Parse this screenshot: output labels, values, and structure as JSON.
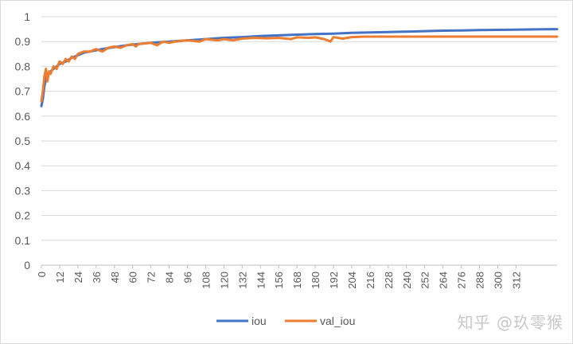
{
  "chart_data": {
    "type": "line",
    "title": "",
    "xlabel": "",
    "ylabel": "",
    "ylim": [
      0,
      1
    ],
    "yticks": [
      "0",
      "0.1",
      "0.2",
      "0.3",
      "0.4",
      "0.5",
      "0.6",
      "0.7",
      "0.8",
      "0.9",
      "1"
    ],
    "xlim": [
      0,
      339
    ],
    "xticks": [
      "0",
      "12",
      "24",
      "36",
      "48",
      "60",
      "72",
      "84",
      "96",
      "108",
      "120",
      "132",
      "144",
      "156",
      "168",
      "180",
      "192",
      "204",
      "216",
      "228",
      "240",
      "252",
      "264",
      "276",
      "288",
      "300",
      "312"
    ],
    "legend_position": "bottom",
    "grid": "horizontal",
    "series": [
      {
        "name": "iou",
        "color": "#4472c4",
        "points": [
          [
            0,
            0.64
          ],
          [
            1,
            0.67
          ],
          [
            2,
            0.72
          ],
          [
            3,
            0.75
          ],
          [
            4,
            0.77
          ],
          [
            6,
            0.78
          ],
          [
            8,
            0.79
          ],
          [
            10,
            0.8
          ],
          [
            12,
            0.81
          ],
          [
            16,
            0.82
          ],
          [
            20,
            0.835
          ],
          [
            24,
            0.845
          ],
          [
            28,
            0.855
          ],
          [
            32,
            0.86
          ],
          [
            36,
            0.865
          ],
          [
            40,
            0.87
          ],
          [
            48,
            0.878
          ],
          [
            56,
            0.885
          ],
          [
            64,
            0.89
          ],
          [
            72,
            0.895
          ],
          [
            84,
            0.9
          ],
          [
            96,
            0.905
          ],
          [
            108,
            0.91
          ],
          [
            120,
            0.915
          ],
          [
            132,
            0.918
          ],
          [
            144,
            0.922
          ],
          [
            156,
            0.925
          ],
          [
            168,
            0.928
          ],
          [
            180,
            0.93
          ],
          [
            192,
            0.932
          ],
          [
            204,
            0.935
          ],
          [
            216,
            0.937
          ],
          [
            228,
            0.938
          ],
          [
            240,
            0.94
          ],
          [
            252,
            0.942
          ],
          [
            264,
            0.944
          ],
          [
            276,
            0.945
          ],
          [
            288,
            0.946
          ],
          [
            300,
            0.947
          ],
          [
            312,
            0.948
          ],
          [
            324,
            0.949
          ],
          [
            339,
            0.95
          ]
        ]
      },
      {
        "name": "val_iou",
        "color": "#ed7d31",
        "points": [
          [
            0,
            0.66
          ],
          [
            1,
            0.7
          ],
          [
            2,
            0.76
          ],
          [
            3,
            0.79
          ],
          [
            4,
            0.74
          ],
          [
            5,
            0.78
          ],
          [
            6,
            0.77
          ],
          [
            8,
            0.8
          ],
          [
            10,
            0.79
          ],
          [
            12,
            0.82
          ],
          [
            14,
            0.81
          ],
          [
            16,
            0.83
          ],
          [
            18,
            0.82
          ],
          [
            20,
            0.84
          ],
          [
            22,
            0.83
          ],
          [
            24,
            0.85
          ],
          [
            28,
            0.86
          ],
          [
            32,
            0.86
          ],
          [
            36,
            0.87
          ],
          [
            40,
            0.86
          ],
          [
            44,
            0.875
          ],
          [
            48,
            0.88
          ],
          [
            52,
            0.875
          ],
          [
            56,
            0.885
          ],
          [
            60,
            0.89
          ],
          [
            62,
            0.88
          ],
          [
            64,
            0.89
          ],
          [
            72,
            0.895
          ],
          [
            76,
            0.885
          ],
          [
            80,
            0.9
          ],
          [
            84,
            0.895
          ],
          [
            88,
            0.9
          ],
          [
            96,
            0.905
          ],
          [
            104,
            0.9
          ],
          [
            108,
            0.91
          ],
          [
            116,
            0.905
          ],
          [
            120,
            0.91
          ],
          [
            126,
            0.905
          ],
          [
            132,
            0.912
          ],
          [
            140,
            0.915
          ],
          [
            148,
            0.913
          ],
          [
            156,
            0.915
          ],
          [
            164,
            0.91
          ],
          [
            168,
            0.917
          ],
          [
            176,
            0.915
          ],
          [
            180,
            0.917
          ],
          [
            186,
            0.91
          ],
          [
            190,
            0.9
          ],
          [
            192,
            0.918
          ],
          [
            198,
            0.912
          ],
          [
            204,
            0.918
          ],
          [
            212,
            0.92
          ],
          [
            240,
            0.92
          ],
          [
            280,
            0.92
          ],
          [
            339,
            0.92
          ]
        ]
      }
    ]
  },
  "watermark": "知乎 @玖零猴"
}
